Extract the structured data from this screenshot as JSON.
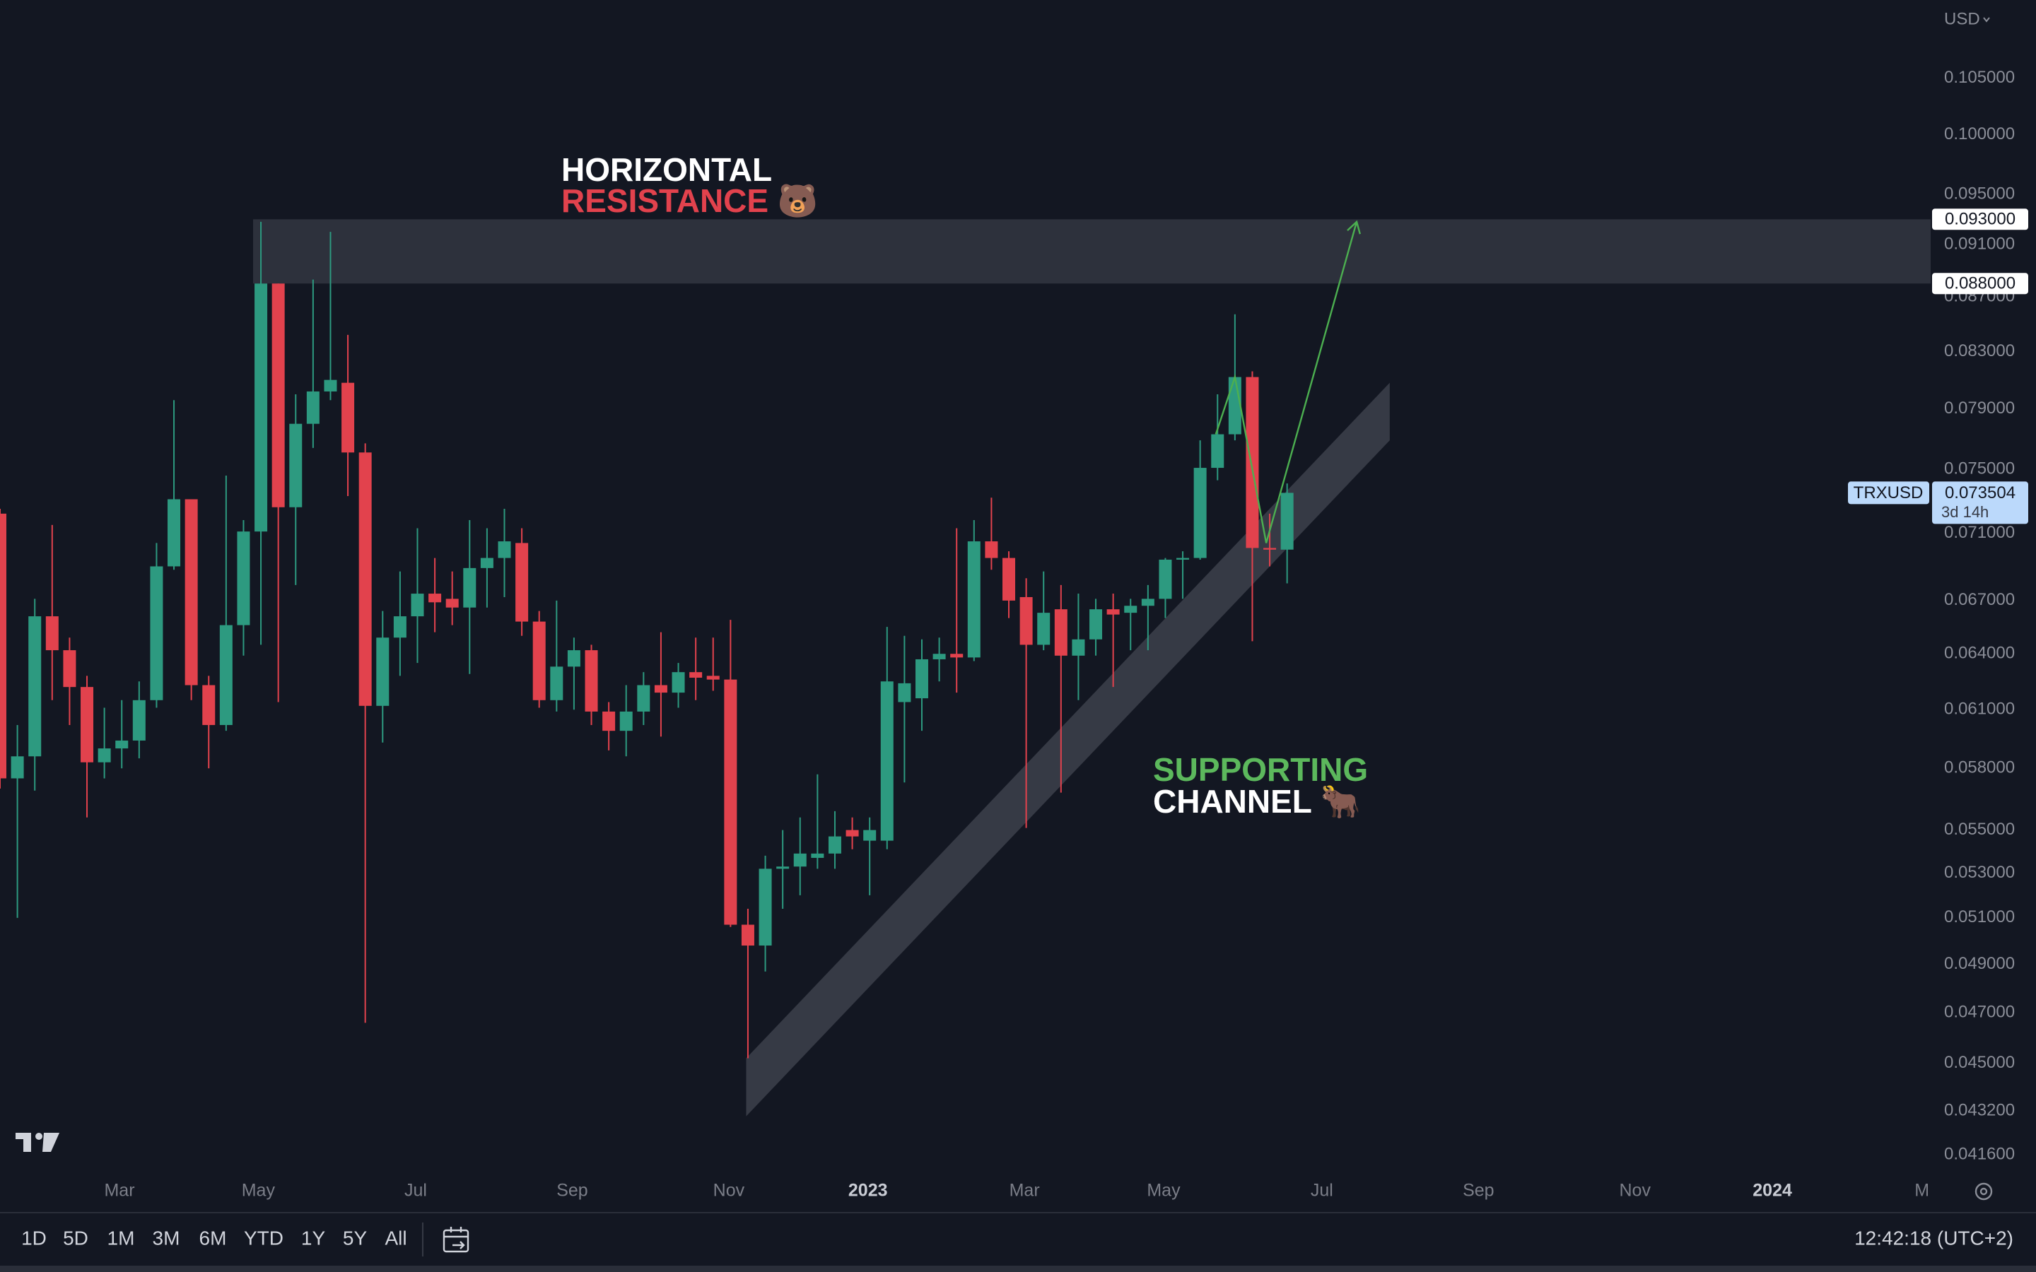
{
  "chart_data": {
    "type": "candlestick",
    "symbol": "TRXUSD",
    "currency": "USD",
    "log_scale": true,
    "up_color": "#2d9a80",
    "down_color": "#e2424d",
    "x": [
      0,
      1,
      2,
      3,
      4,
      5,
      6,
      7,
      8,
      9,
      10,
      11,
      12,
      13,
      14,
      15,
      16,
      17,
      18,
      19,
      20,
      21,
      22,
      23,
      24,
      25,
      26,
      27,
      28,
      29,
      30,
      31,
      32,
      33,
      34,
      35,
      36,
      37,
      38,
      39,
      40,
      41,
      42,
      43,
      44,
      45,
      46,
      47,
      48,
      49,
      50,
      51,
      52,
      53,
      54,
      55,
      56,
      57,
      58,
      59,
      60,
      61,
      62,
      63,
      64,
      65,
      66,
      67,
      68,
      69,
      70,
      71,
      72,
      73,
      74
    ],
    "open": [
      0.0722,
      0.0575,
      0.0586,
      0.0661,
      0.0642,
      0.0622,
      0.0583,
      0.059,
      0.0594,
      0.0615,
      0.069,
      0.0731,
      0.0623,
      0.0602,
      0.0656,
      0.0711,
      0.088,
      0.0726,
      0.078,
      0.0802,
      0.0808,
      0.0761,
      0.0612,
      0.0649,
      0.0661,
      0.0674,
      0.0671,
      0.0666,
      0.0689,
      0.0695,
      0.0704,
      0.0658,
      0.0615,
      0.0633,
      0.0642,
      0.0609,
      0.0599,
      0.0609,
      0.0623,
      0.0619,
      0.063,
      0.0628,
      0.0626,
      0.0507,
      0.0498,
      0.0532,
      0.0533,
      0.0537,
      0.0539,
      0.055,
      0.0545,
      0.0545,
      0.0614,
      0.0616,
      0.0637,
      0.064,
      0.0638,
      0.0705,
      0.0695,
      0.0672,
      0.0645,
      0.0665,
      0.0639,
      0.0648,
      0.0665,
      0.0663,
      0.0667,
      0.0671,
      0.0694,
      0.0695,
      0.0751,
      0.0773,
      0.0812,
      0.0701,
      0.07
    ],
    "high": [
      0.0725,
      0.0602,
      0.0671,
      0.0715,
      0.0649,
      0.0628,
      0.0611,
      0.0615,
      0.0625,
      0.0704,
      0.0796,
      0.0731,
      0.0628,
      0.0746,
      0.0718,
      0.0928,
      0.088,
      0.08,
      0.0883,
      0.092,
      0.0842,
      0.0767,
      0.0664,
      0.0687,
      0.0713,
      0.0695,
      0.0687,
      0.0718,
      0.0713,
      0.0725,
      0.0713,
      0.0664,
      0.067,
      0.0649,
      0.0645,
      0.0614,
      0.0623,
      0.063,
      0.0652,
      0.0635,
      0.0649,
      0.0649,
      0.0659,
      0.0514,
      0.0538,
      0.055,
      0.0556,
      0.0577,
      0.0559,
      0.0556,
      0.0556,
      0.0655,
      0.065,
      0.0648,
      0.0649,
      0.0713,
      0.0718,
      0.0732,
      0.0699,
      0.0683,
      0.0687,
      0.0679,
      0.0674,
      0.0671,
      0.0674,
      0.0671,
      0.0679,
      0.0695,
      0.0699,
      0.0769,
      0.08,
      0.0857,
      0.0816,
      0.0722,
      0.0741
    ],
    "low": [
      0.057,
      0.051,
      0.0569,
      0.0615,
      0.0602,
      0.0556,
      0.0575,
      0.058,
      0.0585,
      0.0611,
      0.0688,
      0.0615,
      0.058,
      0.0599,
      0.0639,
      0.0645,
      0.0614,
      0.0679,
      0.0764,
      0.0796,
      0.0733,
      0.0466,
      0.0593,
      0.0628,
      0.0635,
      0.0652,
      0.0656,
      0.0629,
      0.0666,
      0.0672,
      0.065,
      0.0611,
      0.0609,
      0.061,
      0.0602,
      0.0589,
      0.0586,
      0.0602,
      0.0596,
      0.0611,
      0.0615,
      0.062,
      0.0506,
      0.0452,
      0.0487,
      0.0514,
      0.052,
      0.0532,
      0.0532,
      0.0541,
      0.052,
      0.0541,
      0.0573,
      0.0599,
      0.0625,
      0.0619,
      0.0636,
      0.0688,
      0.066,
      0.0551,
      0.0642,
      0.0568,
      0.0615,
      0.0639,
      0.0622,
      0.0642,
      0.0642,
      0.066,
      0.0671,
      0.0694,
      0.0743,
      0.0769,
      0.0647,
      0.069,
      0.068
    ],
    "close": [
      0.0575,
      0.0586,
      0.0661,
      0.0642,
      0.0622,
      0.0583,
      0.059,
      0.0594,
      0.0615,
      0.069,
      0.0731,
      0.0623,
      0.0602,
      0.0656,
      0.0711,
      0.088,
      0.0726,
      0.078,
      0.0802,
      0.081,
      0.0761,
      0.0612,
      0.0649,
      0.0661,
      0.0674,
      0.0669,
      0.0666,
      0.0689,
      0.0695,
      0.0705,
      0.0658,
      0.0615,
      0.0633,
      0.0642,
      0.0609,
      0.0599,
      0.0609,
      0.0623,
      0.0619,
      0.063,
      0.0627,
      0.0626,
      0.0507,
      0.0498,
      0.0532,
      0.0533,
      0.0539,
      0.0539,
      0.0547,
      0.0547,
      0.055,
      0.0625,
      0.0624,
      0.0637,
      0.064,
      0.0638,
      0.0705,
      0.0695,
      0.067,
      0.0645,
      0.0663,
      0.0639,
      0.0648,
      0.0665,
      0.0662,
      0.0667,
      0.0671,
      0.0694,
      0.0695,
      0.0751,
      0.0773,
      0.0812,
      0.0701,
      0.07,
      0.073504
    ],
    "last_price": {
      "value": 0.073504,
      "label": "0.073504",
      "countdown": "3d 14h"
    },
    "xlim": [
      0,
      111
    ],
    "xticks": [
      {
        "value": 6.87,
        "label": "Mar"
      },
      {
        "value": 14.85,
        "label": "May"
      },
      {
        "value": 23.9,
        "label": "Jul"
      },
      {
        "value": 32.9,
        "label": "Sep"
      },
      {
        "value": 41.9,
        "label": "Nov"
      },
      {
        "value": 49.9,
        "label": "2023"
      },
      {
        "value": 58.9,
        "label": "Mar"
      },
      {
        "value": 66.9,
        "label": "May"
      },
      {
        "value": 76,
        "label": "Jul"
      },
      {
        "value": 85,
        "label": "Sep"
      },
      {
        "value": 94,
        "label": "Nov"
      },
      {
        "value": 101.9,
        "label": "2024"
      },
      {
        "value": 110.5,
        "label": "M"
      }
    ],
    "ylim": [
      0.0409,
      0.1123
    ],
    "yticks": [
      {
        "value": 0.105,
        "label": "0.105000"
      },
      {
        "value": 0.1,
        "label": "0.100000"
      },
      {
        "value": 0.095,
        "label": "0.095000"
      },
      {
        "value": 0.091,
        "label": "0.091000"
      },
      {
        "value": 0.087,
        "label": "0.087000"
      },
      {
        "value": 0.083,
        "label": "0.083000"
      },
      {
        "value": 0.079,
        "label": "0.079000"
      },
      {
        "value": 0.075,
        "label": "0.075000"
      },
      {
        "value": 0.071,
        "label": "0.071000"
      },
      {
        "value": 0.067,
        "label": "0.067000"
      },
      {
        "value": 0.064,
        "label": "0.064000"
      },
      {
        "value": 0.061,
        "label": "0.061000"
      },
      {
        "value": 0.058,
        "label": "0.058000"
      },
      {
        "value": 0.055,
        "label": "0.055000"
      },
      {
        "value": 0.053,
        "label": "0.053000"
      },
      {
        "value": 0.051,
        "label": "0.051000"
      },
      {
        "value": 0.049,
        "label": "0.049000"
      },
      {
        "value": 0.047,
        "label": "0.047000"
      },
      {
        "value": 0.045,
        "label": "0.045000"
      },
      {
        "value": 0.0432,
        "label": "0.043200"
      },
      {
        "value": 0.0416,
        "label": "0.041600"
      }
    ],
    "resistance_zone": {
      "x_start": 14.55,
      "top": {
        "value": 0.093,
        "label": "0.093000"
      },
      "bottom": {
        "value": 0.088,
        "label": "0.088000"
      },
      "title": [
        "HORIZONTAL",
        "RESISTANCE 🐻"
      ]
    },
    "support_channel": {
      "x": [
        42.9,
        79.9
      ],
      "upper": [
        0.0452,
        0.0808
      ],
      "lower": [
        0.043,
        0.0769
      ],
      "title": [
        "SUPPORTING",
        "CHANNEL 🐂"
      ]
    },
    "projection": {
      "x": [
        69.9,
        71.0,
        72.8,
        78.0
      ],
      "y": [
        0.0773,
        0.0812,
        0.0704,
        0.0928
      ]
    },
    "range_buttons": [
      "1D",
      "5D",
      "1M",
      "3M",
      "6M",
      "YTD",
      "1Y",
      "5Y",
      "All"
    ],
    "clock": "12:42:18 (UTC+2)"
  }
}
